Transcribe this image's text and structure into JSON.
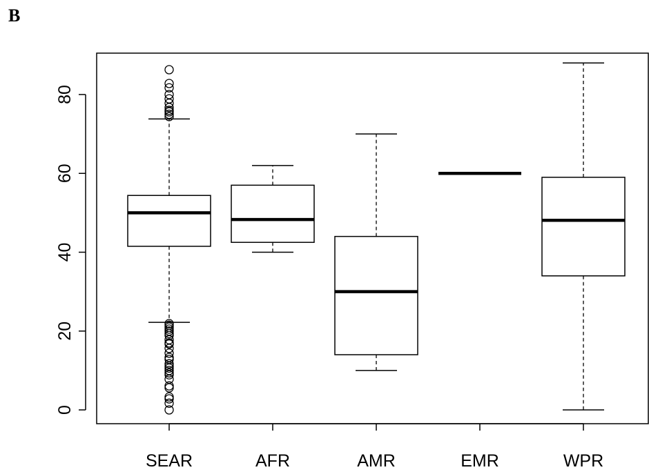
{
  "panel_label": "B",
  "chart_data": {
    "type": "box",
    "title": "",
    "xlabel": "",
    "ylabel": "",
    "ylim": [
      -3.5,
      90.5
    ],
    "yticks": [
      0,
      20,
      40,
      60,
      80
    ],
    "categories": [
      "SEAR",
      "AFR",
      "AMR",
      "EMR",
      "WPR"
    ],
    "boxes": [
      {
        "category": "SEAR",
        "whisker_low": 22.2,
        "q1": 41.5,
        "median": 50,
        "q3": 54.4,
        "whisker_high": 73.8,
        "outliers": [
          86.3,
          82.8,
          81.7,
          80,
          78.9,
          77.8,
          76.7,
          76,
          75.6,
          75,
          74.4,
          21.9,
          21.5,
          21,
          20.5,
          20,
          19.4,
          18.9,
          17.8,
          17,
          16.7,
          15.6,
          14.4,
          13.3,
          12.8,
          11.7,
          11.1,
          10.6,
          10,
          9.4,
          8.9,
          7.8,
          6.1,
          5.6,
          3.3,
          2.8,
          1.7,
          0
        ]
      },
      {
        "category": "AFR",
        "whisker_low": 40,
        "q1": 42.5,
        "median": 48.3,
        "q3": 57,
        "whisker_high": 62,
        "outliers": []
      },
      {
        "category": "AMR",
        "whisker_low": 10,
        "q1": 14,
        "median": 30,
        "q3": 44,
        "whisker_high": 70,
        "outliers": []
      },
      {
        "category": "EMR",
        "whisker_low": 60,
        "q1": 60,
        "median": 60,
        "q3": 60,
        "whisker_high": 60,
        "outliers": []
      },
      {
        "category": "WPR",
        "whisker_low": 0,
        "q1": 34,
        "median": 48.1,
        "q3": 59,
        "whisker_high": 88,
        "outliers": []
      }
    ],
    "grid": false,
    "legend": "none"
  }
}
